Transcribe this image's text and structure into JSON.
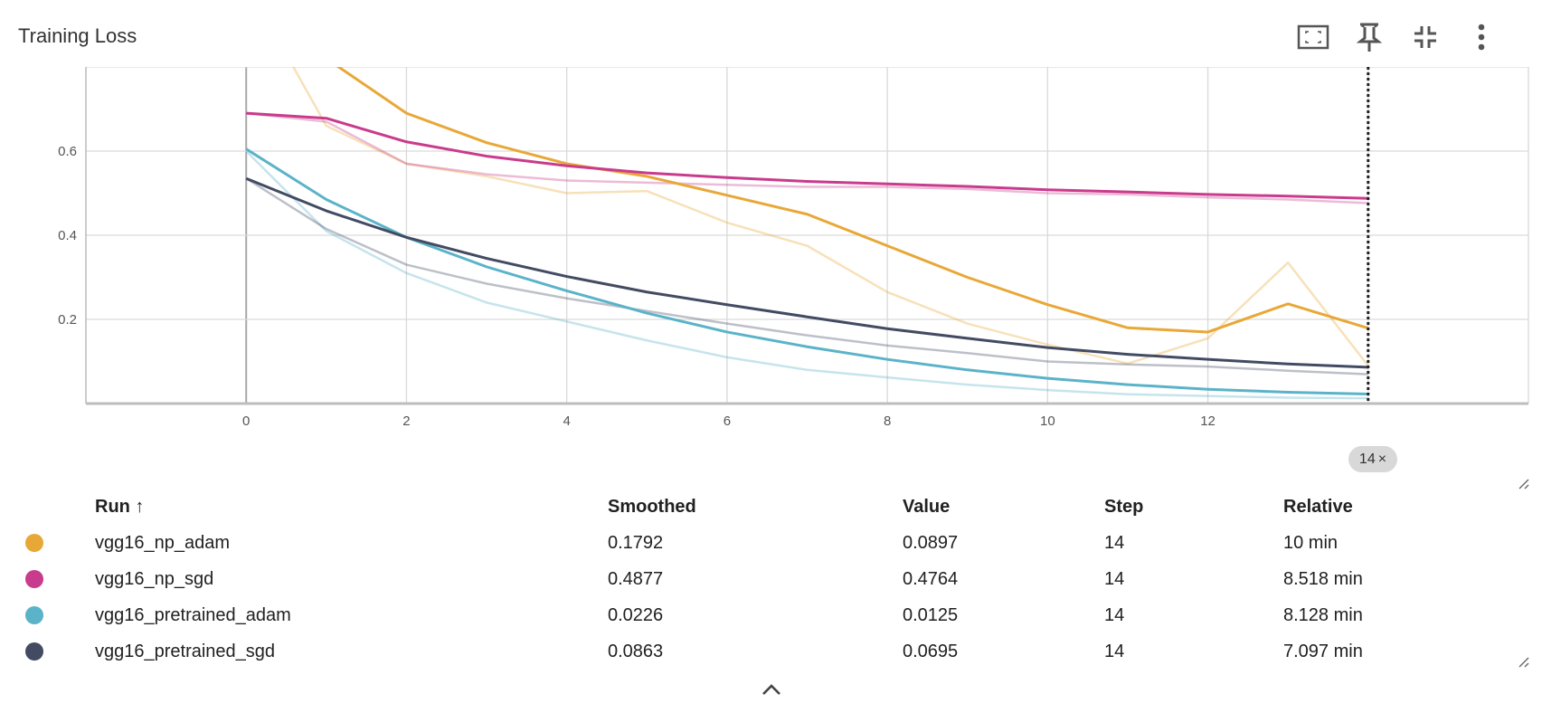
{
  "title": "Training Loss",
  "toolbar": {
    "fit_icon": "fit-domain-icon",
    "pin_icon": "pin-icon",
    "collapse_icon": "collapse-icon",
    "more_icon": "more-vert-icon"
  },
  "step_chip": {
    "label": "14",
    "close": "×"
  },
  "table": {
    "headers": {
      "run": "Run ↑",
      "smoothed": "Smoothed",
      "value": "Value",
      "step": "Step",
      "relative": "Relative"
    },
    "rows": [
      {
        "color": "#E8A838",
        "run": "vgg16_np_adam",
        "smoothed": "0.1792",
        "value": "0.0897",
        "step": "14",
        "relative": "10 min"
      },
      {
        "color": "#C93B8C",
        "run": "vgg16_np_sgd",
        "smoothed": "0.4877",
        "value": "0.4764",
        "step": "14",
        "relative": "8.518 min"
      },
      {
        "color": "#5BB3C9",
        "run": "vgg16_pretrained_adam",
        "smoothed": "0.0226",
        "value": "0.0125",
        "step": "14",
        "relative": "8.128 min"
      },
      {
        "color": "#434B63",
        "run": "vgg16_pretrained_sgd",
        "smoothed": "0.0863",
        "value": "0.0695",
        "step": "14",
        "relative": "7.097 min"
      }
    ]
  },
  "chart_data": {
    "type": "line",
    "title": "Training Loss",
    "xlim": [
      -2,
      16
    ],
    "ylim": [
      0,
      0.8
    ],
    "xticks": [
      0,
      2,
      4,
      6,
      8,
      10,
      12
    ],
    "yticks": [
      0.2,
      0.4,
      0.6
    ],
    "grid": true,
    "cursor_step": 14,
    "series": [
      {
        "name": "vgg16_np_adam",
        "color": "#E8A838",
        "x": [
          0,
          1,
          2,
          3,
          4,
          5,
          6,
          7,
          8,
          9,
          10,
          11,
          12,
          13,
          14
        ],
        "raw": [
          1.0,
          0.66,
          0.57,
          0.54,
          0.5,
          0.505,
          0.43,
          0.375,
          0.265,
          0.19,
          0.14,
          0.095,
          0.155,
          0.335,
          0.0897
        ],
        "smoothed": [
          1.05,
          0.82,
          0.69,
          0.62,
          0.57,
          0.54,
          0.495,
          0.45,
          0.375,
          0.3,
          0.235,
          0.18,
          0.17,
          0.237,
          0.1792
        ]
      },
      {
        "name": "vgg16_np_sgd",
        "color": "#C93B8C",
        "x": [
          0,
          1,
          2,
          3,
          4,
          5,
          6,
          7,
          8,
          9,
          10,
          11,
          12,
          13,
          14
        ],
        "raw": [
          0.69,
          0.67,
          0.57,
          0.545,
          0.53,
          0.525,
          0.52,
          0.515,
          0.515,
          0.51,
          0.5,
          0.497,
          0.49,
          0.485,
          0.4764
        ],
        "smoothed": [
          0.69,
          0.678,
          0.622,
          0.588,
          0.565,
          0.548,
          0.537,
          0.528,
          0.522,
          0.516,
          0.508,
          0.503,
          0.497,
          0.493,
          0.4877
        ]
      },
      {
        "name": "vgg16_pretrained_adam",
        "color": "#5BB3C9",
        "x": [
          0,
          1,
          2,
          3,
          4,
          5,
          6,
          7,
          8,
          9,
          10,
          11,
          12,
          13,
          14
        ],
        "raw": [
          0.6,
          0.41,
          0.31,
          0.24,
          0.195,
          0.15,
          0.11,
          0.08,
          0.062,
          0.045,
          0.032,
          0.022,
          0.018,
          0.014,
          0.0125
        ],
        "smoothed": [
          0.605,
          0.485,
          0.395,
          0.325,
          0.268,
          0.215,
          0.17,
          0.135,
          0.105,
          0.08,
          0.06,
          0.045,
          0.034,
          0.027,
          0.0226
        ]
      },
      {
        "name": "vgg16_pretrained_sgd",
        "color": "#434B63",
        "x": [
          0,
          1,
          2,
          3,
          4,
          5,
          6,
          7,
          8,
          9,
          10,
          11,
          12,
          13,
          14
        ],
        "raw": [
          0.535,
          0.415,
          0.33,
          0.285,
          0.25,
          0.22,
          0.19,
          0.162,
          0.138,
          0.12,
          0.1,
          0.093,
          0.088,
          0.078,
          0.0695
        ],
        "smoothed": [
          0.535,
          0.458,
          0.395,
          0.345,
          0.302,
          0.265,
          0.235,
          0.206,
          0.178,
          0.155,
          0.133,
          0.117,
          0.105,
          0.094,
          0.0863
        ]
      }
    ]
  }
}
